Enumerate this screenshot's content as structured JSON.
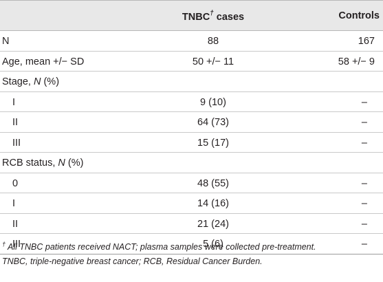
{
  "header": {
    "col_tnbc_prefix": "TNBC",
    "col_tnbc_mark": "†",
    "col_tnbc_suffix": " cases",
    "col_controls": "Controls"
  },
  "rows": [
    {
      "label": "N",
      "tnbc": "88",
      "controls": "167"
    },
    {
      "label": "Age, mean +/− SD",
      "tnbc": "50 +/− 11",
      "controls": "58 +/− 9"
    },
    {
      "label_prefix": "Stage, ",
      "label_italic": "N",
      "label_suffix": " (%)",
      "tnbc": "",
      "controls": ""
    },
    {
      "label": "I",
      "tnbc": "9 (10)",
      "controls": "–"
    },
    {
      "label": "II",
      "tnbc": "64 (73)",
      "controls": "–"
    },
    {
      "label": "III",
      "tnbc": "15 (17)",
      "controls": "–"
    },
    {
      "label_prefix": "RCB status, ",
      "label_italic": "N",
      "label_suffix": " (%)",
      "tnbc": "",
      "controls": ""
    },
    {
      "label": "0",
      "tnbc": "48 (55)",
      "controls": "–"
    },
    {
      "label": "I",
      "tnbc": "14 (16)",
      "controls": "–"
    },
    {
      "label": "II",
      "tnbc": "21 (24)",
      "controls": "–"
    },
    {
      "label": "III",
      "tnbc": "5 (6)",
      "controls": "–"
    }
  ],
  "footnote": {
    "mark": "†",
    "line1": "All TNBC patients received NACT; plasma samples were collected pre-treatment.",
    "line2": "TNBC, triple-negative breast cancer; RCB, Residual Cancer Burden."
  }
}
